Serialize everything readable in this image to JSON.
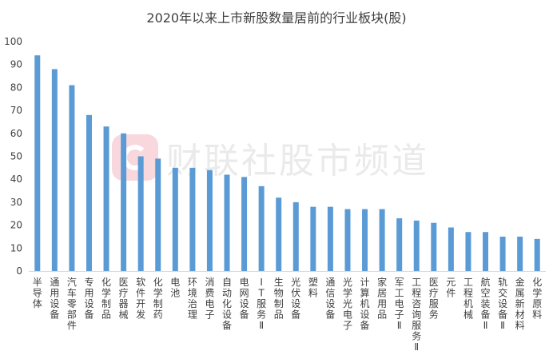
{
  "chart_data": {
    "type": "bar",
    "title": "2020年以来上市新股数量居前的行业板块(股)",
    "xlabel": "",
    "ylabel": "",
    "ylim": [
      0,
      100
    ],
    "yticks": [
      0,
      10,
      20,
      30,
      40,
      50,
      60,
      70,
      80,
      90,
      100
    ],
    "grid": false,
    "legend": "none",
    "bar_color": "#5b9bd5",
    "categories": [
      "半导体",
      "通用设备",
      "汽车零部件",
      "专用设备",
      "化学制品",
      "医疗器械",
      "软件开发",
      "化学制药",
      "电池",
      "环境治理",
      "消费电子",
      "自动化设备",
      "电网设备",
      "IT服务Ⅱ",
      "生物制品",
      "光伏设备",
      "塑料",
      "通信设备",
      "光学光电子",
      "计算机设备",
      "家居用品",
      "军工电子Ⅱ",
      "工程咨询服务Ⅱ",
      "医疗服务",
      "元件",
      "工程机械",
      "航空装备Ⅱ",
      "轨交设备Ⅱ",
      "金属新材料",
      "化学原料"
    ],
    "values": [
      94,
      88,
      81,
      68,
      63,
      60,
      50,
      49,
      45,
      45,
      44,
      42,
      41,
      37,
      32,
      30,
      28,
      28,
      27,
      27,
      27,
      23,
      22,
      21,
      19,
      17,
      17,
      15,
      15,
      14
    ]
  },
  "watermark": {
    "text": "财联社股市频道",
    "logo_color": "#f3b7c2"
  }
}
